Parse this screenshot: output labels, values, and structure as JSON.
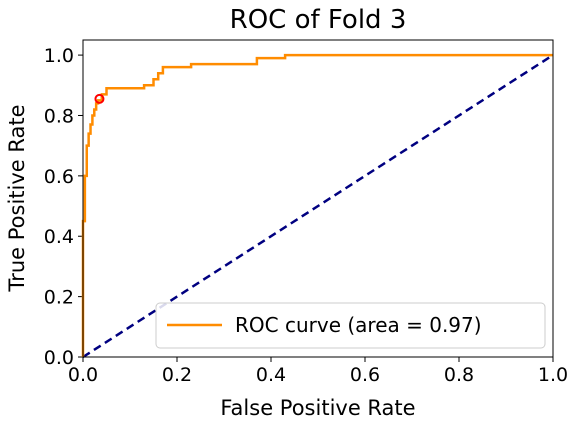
{
  "chart_data": {
    "type": "line",
    "title": "ROC of Fold 3",
    "xlabel": "False Positive Rate",
    "ylabel": "True Positive Rate",
    "xlim": [
      0.0,
      1.0
    ],
    "ylim": [
      0.0,
      1.05
    ],
    "grid": false,
    "legend_placement": "lower-right",
    "x_ticks": [
      "0.0",
      "0.2",
      "0.4",
      "0.6",
      "0.8",
      "1.0"
    ],
    "y_ticks": [
      "0.0",
      "0.2",
      "0.4",
      "0.6",
      "0.8",
      "1.0"
    ],
    "series": [
      {
        "name": "ROC curve (area = 0.97)",
        "color": "#ff8c00",
        "style": "solid",
        "x": [
          0.0,
          0.0,
          0.004,
          0.004,
          0.008,
          0.008,
          0.012,
          0.012,
          0.016,
          0.016,
          0.02,
          0.02,
          0.024,
          0.024,
          0.028,
          0.028,
          0.032,
          0.032,
          0.04,
          0.04,
          0.05,
          0.05,
          0.13,
          0.13,
          0.15,
          0.15,
          0.16,
          0.16,
          0.17,
          0.17,
          0.23,
          0.23,
          0.37,
          0.37,
          0.43,
          0.43,
          1.0
        ],
        "y": [
          0.0,
          0.45,
          0.45,
          0.6,
          0.6,
          0.7,
          0.7,
          0.74,
          0.74,
          0.77,
          0.77,
          0.8,
          0.8,
          0.82,
          0.82,
          0.84,
          0.84,
          0.85,
          0.85,
          0.87,
          0.87,
          0.89,
          0.89,
          0.9,
          0.9,
          0.92,
          0.92,
          0.94,
          0.94,
          0.96,
          0.96,
          0.97,
          0.97,
          0.99,
          0.99,
          1.0,
          1.0
        ]
      },
      {
        "color": "#000080",
        "style": "dashed",
        "x": [
          0.0,
          1.0
        ],
        "y": [
          0.0,
          1.0
        ]
      }
    ],
    "marker": {
      "x": 0.035,
      "y": 0.855,
      "color": "#ff0000",
      "shape": "open-circle"
    }
  }
}
